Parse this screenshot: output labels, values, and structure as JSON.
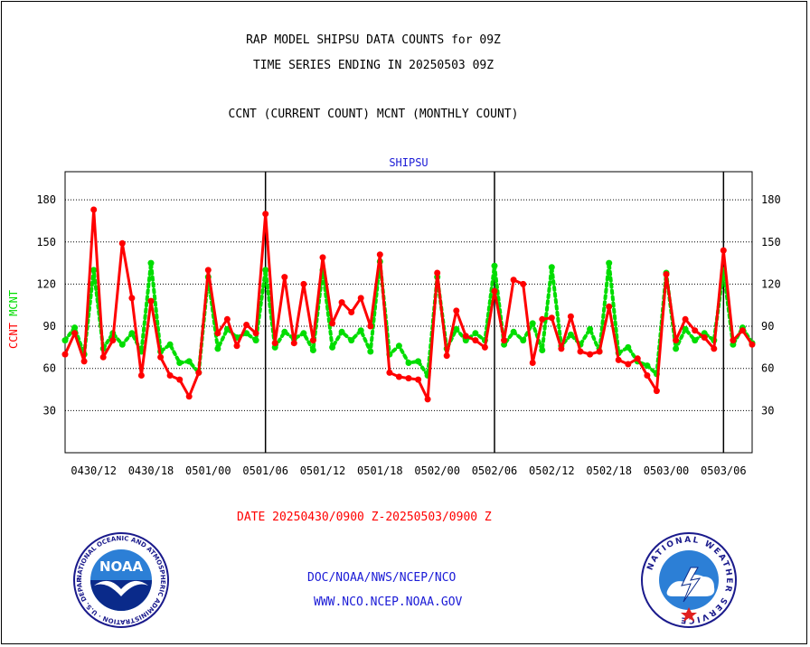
{
  "header": {
    "line1": "RAP MODEL SHIPSU DATA COUNTS for 09Z",
    "line2": "TIME SERIES ENDING IN 20250503 09Z",
    "line3": "CCNT (CURRENT COUNT) MCNT (MONTHLY COUNT)"
  },
  "footer": {
    "date_range": "DATE 20250430/0900 Z-20250503/0900 Z",
    "org": "DOC/NOAA/NWS/NCEP/NCO",
    "url": "WWW.NCO.NCEP.NOAA.GOV"
  },
  "logos": {
    "noaa_center": "NOAA",
    "noaa_ring": "NATIONAL OCEANIC AND ATMOSPHERIC ADMINISTRATION · U.S. DEPARTMENT OF COMMERCE ·",
    "nws_ring": "NATIONAL WEATHER SERVICE"
  },
  "colors": {
    "ccnt": "#ff0000",
    "mcnt": "#00dd00",
    "footer_text": "#1a1ad6",
    "title_text": "#1a1ad6"
  },
  "chart_data": {
    "type": "line",
    "title": "SHIPSU",
    "ylabel_left": [
      "CCNT",
      "MCNT"
    ],
    "ylim": [
      0,
      200
    ],
    "yticks": [
      30,
      60,
      90,
      120,
      150,
      180
    ],
    "ytick_labels": [
      "30",
      "60",
      "90",
      "120",
      "150",
      "180"
    ],
    "grid": "horizontal dotted",
    "xlim": [
      0,
      72
    ],
    "xticks": [
      3,
      9,
      15,
      21,
      27,
      33,
      39,
      45,
      51,
      57,
      63,
      69
    ],
    "xtick_labels": [
      "0430/12",
      "0430/18",
      "0501/00",
      "0501/06",
      "0501/12",
      "0501/18",
      "0502/00",
      "0502/06",
      "0502/12",
      "0502/18",
      "0503/00",
      "0503/06"
    ],
    "day_lines": [
      21,
      45,
      69
    ],
    "series": [
      {
        "name": "CCNT",
        "color": "#ff0000",
        "style": "solid",
        "values": [
          70,
          85,
          65,
          173,
          68,
          80,
          149,
          110,
          55,
          108,
          68,
          55,
          52,
          40,
          57,
          130,
          85,
          95,
          76,
          91,
          85,
          170,
          78,
          125,
          78,
          120,
          80,
          139,
          92,
          107,
          100,
          110,
          90,
          141,
          57,
          54,
          53,
          52,
          38,
          128,
          69,
          101,
          83,
          80,
          75,
          115,
          80,
          123,
          120,
          64,
          95,
          96,
          74,
          97,
          72,
          70,
          72,
          104,
          66,
          63,
          67,
          55,
          44,
          127,
          80,
          95,
          87,
          82,
          74,
          144,
          80,
          87,
          77
        ]
      },
      {
        "name": "MCNT",
        "color": "#00dd00",
        "style": "dotted",
        "values": [
          80,
          89,
          70,
          130,
          74,
          85,
          77,
          85,
          72,
          135,
          72,
          77,
          64,
          65,
          57,
          125,
          74,
          88,
          82,
          85,
          80,
          130,
          75,
          86,
          81,
          85,
          73,
          130,
          75,
          86,
          80,
          87,
          72,
          136,
          70,
          76,
          64,
          65,
          55,
          125,
          74,
          88,
          80,
          85,
          80,
          133,
          77,
          86,
          80,
          92,
          73,
          132,
          76,
          84,
          77,
          88,
          72,
          135,
          71,
          75,
          65,
          62,
          56,
          128,
          74,
          88,
          80,
          85,
          80,
          130,
          77,
          89,
          78
        ]
      }
    ]
  }
}
